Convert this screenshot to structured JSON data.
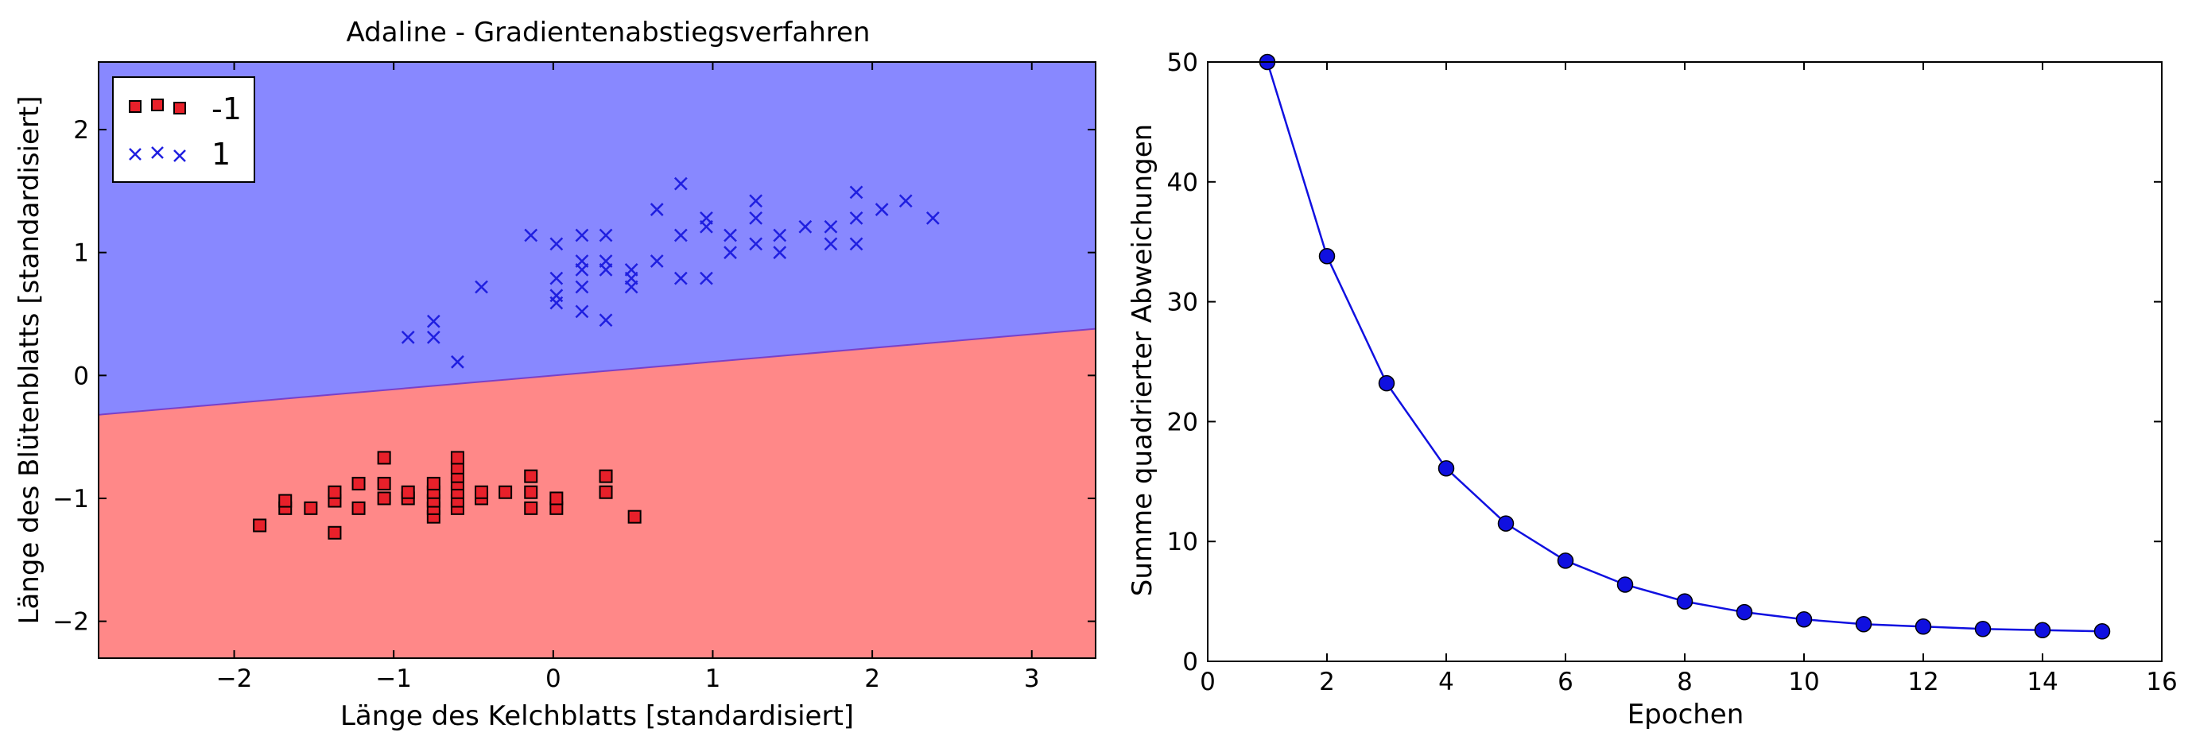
{
  "chart_data": [
    {
      "type": "scatter",
      "title": "Adaline - Gradientenabstiegsverfahren",
      "xlabel": "Länge des Kelchblatts [standardisiert]",
      "ylabel": "Länge des Blütenblatts [standardisiert]",
      "xlim": [
        -2.85,
        3.4
      ],
      "ylim": [
        -2.3,
        2.55
      ],
      "xticks": [
        -2,
        -1,
        0,
        1,
        2,
        3
      ],
      "yticks": [
        -2,
        -1,
        0,
        1,
        2
      ],
      "xtick_labels": [
        "−2",
        "−1",
        "0",
        "1",
        "2",
        "3"
      ],
      "ytick_labels": [
        "−2",
        "−1",
        "0",
        "1",
        "2"
      ],
      "legend_position": "top-left",
      "decision_boundary": {
        "x": [
          -2.85,
          3.4
        ],
        "y": [
          -0.32,
          0.38
        ],
        "above_class": "1",
        "below_class": "-1",
        "above_color": "#8888ff",
        "below_color": "#ff8888"
      },
      "series": [
        {
          "name": "-1",
          "marker": "square",
          "color": "#e8202a",
          "points": [
            [
              -1.84,
              -1.22
            ],
            [
              -1.68,
              -1.08
            ],
            [
              -1.68,
              -1.02
            ],
            [
              -1.52,
              -1.08
            ],
            [
              -1.37,
              -1.28
            ],
            [
              -1.37,
              -1.02
            ],
            [
              -1.37,
              -0.95
            ],
            [
              -1.22,
              -1.08
            ],
            [
              -1.22,
              -0.88
            ],
            [
              -1.06,
              -1.0
            ],
            [
              -1.06,
              -0.88
            ],
            [
              -1.06,
              -0.67
            ],
            [
              -0.91,
              -1.0
            ],
            [
              -0.91,
              -0.95
            ],
            [
              -0.75,
              -1.15
            ],
            [
              -0.75,
              -1.08
            ],
            [
              -0.75,
              -1.02
            ],
            [
              -0.75,
              -0.95
            ],
            [
              -0.75,
              -0.88
            ],
            [
              -0.6,
              -1.08
            ],
            [
              -0.6,
              -1.02
            ],
            [
              -0.6,
              -0.95
            ],
            [
              -0.6,
              -0.88
            ],
            [
              -0.6,
              -0.82
            ],
            [
              -0.6,
              -0.75
            ],
            [
              -0.6,
              -0.67
            ],
            [
              -0.45,
              -1.0
            ],
            [
              -0.45,
              -0.95
            ],
            [
              -0.3,
              -0.95
            ],
            [
              -0.14,
              -1.08
            ],
            [
              -0.14,
              -0.95
            ],
            [
              -0.14,
              -0.82
            ],
            [
              0.02,
              -1.08
            ],
            [
              0.02,
              -1.0
            ],
            [
              0.33,
              -0.95
            ],
            [
              0.33,
              -0.82
            ],
            [
              0.51,
              -1.15
            ]
          ]
        },
        {
          "name": "1",
          "marker": "x",
          "color": "#1f1fe0",
          "points": [
            [
              -0.91,
              0.31
            ],
            [
              -0.75,
              0.31
            ],
            [
              -0.75,
              0.44
            ],
            [
              -0.6,
              0.11
            ],
            [
              -0.45,
              0.72
            ],
            [
              -0.14,
              1.14
            ],
            [
              0.02,
              1.07
            ],
            [
              0.02,
              0.79
            ],
            [
              0.02,
              0.65
            ],
            [
              0.02,
              0.59
            ],
            [
              0.18,
              1.14
            ],
            [
              0.18,
              0.93
            ],
            [
              0.18,
              0.86
            ],
            [
              0.18,
              0.72
            ],
            [
              0.18,
              0.52
            ],
            [
              0.33,
              1.14
            ],
            [
              0.33,
              0.93
            ],
            [
              0.33,
              0.86
            ],
            [
              0.33,
              0.45
            ],
            [
              0.49,
              0.86
            ],
            [
              0.49,
              0.79
            ],
            [
              0.49,
              0.72
            ],
            [
              0.65,
              1.35
            ],
            [
              0.65,
              0.93
            ],
            [
              0.8,
              1.56
            ],
            [
              0.8,
              1.14
            ],
            [
              0.8,
              0.79
            ],
            [
              0.96,
              1.28
            ],
            [
              0.96,
              1.21
            ],
            [
              0.96,
              0.79
            ],
            [
              1.11,
              1.14
            ],
            [
              1.11,
              1.0
            ],
            [
              1.27,
              1.42
            ],
            [
              1.27,
              1.28
            ],
            [
              1.27,
              1.07
            ],
            [
              1.42,
              1.14
            ],
            [
              1.42,
              1.0
            ],
            [
              1.58,
              1.21
            ],
            [
              1.74,
              1.21
            ],
            [
              1.74,
              1.07
            ],
            [
              1.9,
              1.49
            ],
            [
              1.9,
              1.28
            ],
            [
              1.9,
              1.07
            ],
            [
              2.06,
              1.35
            ],
            [
              2.21,
              1.42
            ],
            [
              2.38,
              1.28
            ]
          ]
        }
      ]
    },
    {
      "type": "line",
      "title": "",
      "xlabel": "Epochen",
      "ylabel": "Summe quadrierter Abweichungen",
      "xlim": [
        0,
        16
      ],
      "ylim": [
        0,
        50
      ],
      "xticks": [
        0,
        2,
        4,
        6,
        8,
        10,
        12,
        14,
        16
      ],
      "yticks": [
        0,
        10,
        20,
        30,
        40,
        50
      ],
      "marker": "circle",
      "color": "#1010e0",
      "x": [
        1,
        2,
        3,
        4,
        5,
        6,
        7,
        8,
        9,
        10,
        11,
        12,
        13,
        14,
        15
      ],
      "y": [
        50.0,
        33.8,
        23.2,
        16.1,
        11.5,
        8.4,
        6.4,
        5.0,
        4.1,
        3.5,
        3.1,
        2.9,
        2.7,
        2.6,
        2.5
      ]
    }
  ]
}
